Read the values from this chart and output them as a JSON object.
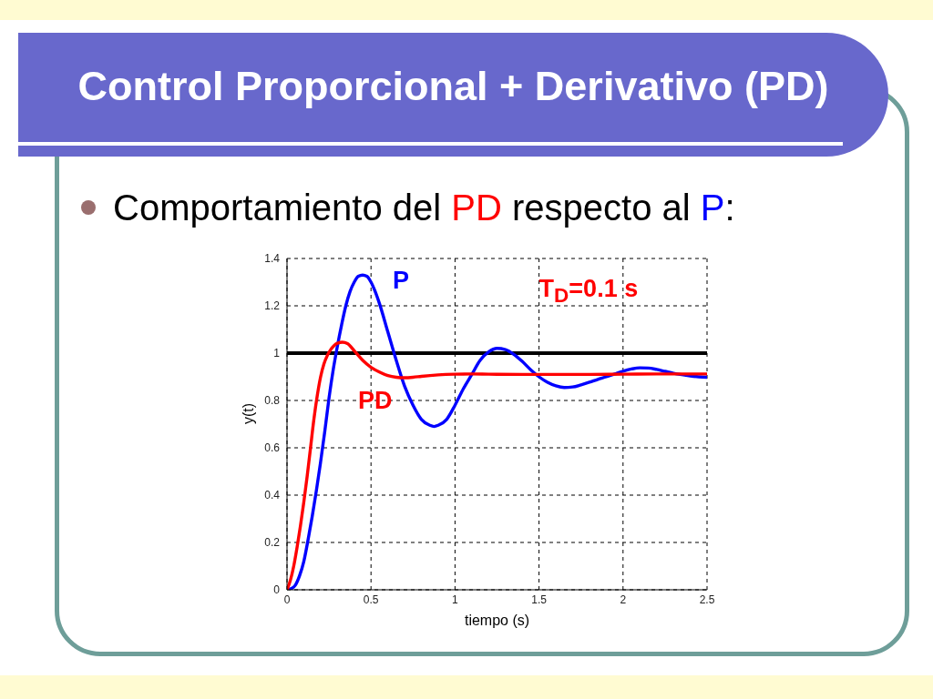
{
  "chart_data": {
    "type": "line",
    "title": "Control Proporcional + Derivativo (PD)",
    "subtitle": "Comportamiento del PD respecto al P:",
    "xlabel": "tiempo (s)",
    "ylabel": "y(t)",
    "annotations": [
      "T$_{D}$=0.1 s"
    ],
    "xlim": [
      0,
      2.5
    ],
    "xticks": [
      0,
      0.5,
      1,
      1.5,
      2,
      2.5
    ],
    "ylim": [
      0,
      1.4
    ],
    "yticks": [
      0,
      0.2,
      0.4,
      0.6,
      0.8,
      1,
      1.2,
      1.4
    ],
    "grid": true,
    "marker": "none",
    "line_style": "solid",
    "ref_lines": [
      {
        "axis": "y",
        "value": 1,
        "color": "#000000"
      }
    ],
    "series": [
      {
        "name": "P",
        "color": "#0000ff",
        "x": [
          0,
          0.025,
          0.05,
          0.075,
          0.1,
          0.125,
          0.15,
          0.175,
          0.2,
          0.225,
          0.25,
          0.275,
          0.3,
          0.325,
          0.35,
          0.375,
          0.4,
          0.425,
          0.45,
          0.475,
          0.5,
          0.525,
          0.55,
          0.6,
          0.65,
          0.7,
          0.75,
          0.8,
          0.85,
          0.875,
          0.9,
          0.95,
          1,
          1.05,
          1.1,
          1.15,
          1.2,
          1.25,
          1.3,
          1.35,
          1.4,
          1.45,
          1.5,
          1.55,
          1.6,
          1.65,
          1.7,
          1.75,
          1.8,
          1.85,
          1.9,
          1.95,
          2,
          2.05,
          2.1,
          2.15,
          2.2,
          2.25,
          2.3,
          2.35,
          2.4,
          2.45,
          2.5
        ],
        "values": [
          0,
          0.005,
          0.02,
          0.06,
          0.12,
          0.21,
          0.31,
          0.42,
          0.54,
          0.67,
          0.81,
          0.93,
          1.03,
          1.12,
          1.2,
          1.26,
          1.3,
          1.325,
          1.33,
          1.325,
          1.3,
          1.26,
          1.21,
          1.09,
          0.97,
          0.86,
          0.78,
          0.72,
          0.695,
          0.69,
          0.695,
          0.72,
          0.78,
          0.85,
          0.91,
          0.97,
          1.005,
          1.02,
          1.015,
          0.995,
          0.965,
          0.93,
          0.9,
          0.877,
          0.862,
          0.855,
          0.857,
          0.866,
          0.877,
          0.889,
          0.9,
          0.912,
          0.924,
          0.933,
          0.938,
          0.937,
          0.931,
          0.923,
          0.915,
          0.909,
          0.904,
          0.9,
          0.898
        ]
      },
      {
        "name": "PD",
        "color": "#ff0000",
        "x": [
          0,
          0.02,
          0.04,
          0.06,
          0.08,
          0.1,
          0.12,
          0.14,
          0.16,
          0.18,
          0.2,
          0.22,
          0.24,
          0.26,
          0.28,
          0.3,
          0.33,
          0.36,
          0.4,
          0.45,
          0.5,
          0.55,
          0.6,
          0.65,
          0.7,
          0.75,
          0.8,
          0.9,
          1,
          1.1,
          1.2,
          1.4,
          1.6,
          1.8,
          2,
          2.2,
          2.5
        ],
        "values": [
          0,
          0.04,
          0.1,
          0.18,
          0.27,
          0.37,
          0.48,
          0.6,
          0.72,
          0.82,
          0.9,
          0.955,
          0.99,
          1.015,
          1.032,
          1.042,
          1.046,
          1.04,
          1.01,
          0.97,
          0.94,
          0.92,
          0.905,
          0.898,
          0.896,
          0.898,
          0.902,
          0.908,
          0.911,
          0.912,
          0.911,
          0.91,
          0.91,
          0.91,
          0.911,
          0.912,
          0.912
        ]
      }
    ]
  }
}
